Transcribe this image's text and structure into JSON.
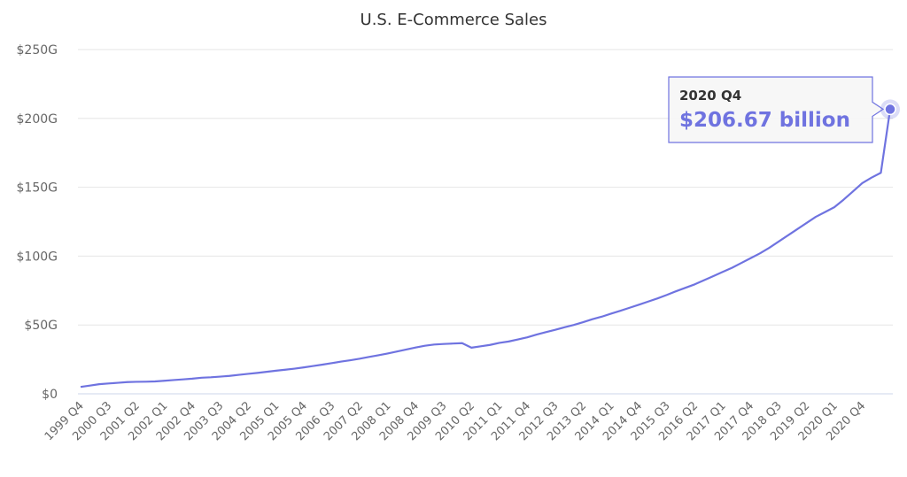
{
  "chart_data": {
    "type": "line",
    "title": "U.S. E-Commerce Sales",
    "xlabel": "",
    "ylabel": "",
    "ylim": [
      0,
      250
    ],
    "y_ticks": [
      "$0",
      "$50G",
      "$100G",
      "$150G",
      "$200G",
      "$250G"
    ],
    "x_tick_labels": [
      "1999 Q4",
      "2000 Q3",
      "2001 Q2",
      "2002 Q1",
      "2002 Q4",
      "2003 Q3",
      "2004 Q2",
      "2005 Q1",
      "2005 Q4",
      "2006 Q3",
      "2007 Q2",
      "2008 Q1",
      "2008 Q4",
      "2009 Q3",
      "2010 Q2",
      "2011 Q1",
      "2011 Q4",
      "2012 Q3",
      "2013 Q2",
      "2014 Q1",
      "2014 Q4",
      "2015 Q3",
      "2016 Q2",
      "2017 Q1",
      "2017 Q4",
      "2018 Q3",
      "2019 Q2",
      "2020 Q1",
      "2020 Q4"
    ],
    "grid": true,
    "line_color": "#6f73e0",
    "series": [
      {
        "values": [
          5.0,
          6.0,
          7.0,
          7.5,
          8.0,
          8.5,
          8.7,
          8.8,
          9.0,
          9.5,
          10.0,
          10.5,
          11.0,
          11.7,
          12.0,
          12.5,
          13.0,
          13.8,
          14.5,
          15.2,
          16.0,
          16.8,
          17.5,
          18.3,
          19.2,
          20.2,
          21.2,
          22.3,
          23.4,
          24.4,
          25.5,
          26.8,
          28.0,
          29.3,
          30.7,
          32.2,
          33.6,
          34.9,
          35.8,
          36.2,
          36.5,
          36.8,
          33.5,
          34.5,
          35.5,
          37.0,
          38.0,
          39.5,
          41.0,
          43.0,
          44.8,
          46.5,
          48.3,
          50.0,
          52.0,
          54.2,
          56.0,
          58.2,
          60.3,
          62.5,
          64.7,
          67.0,
          69.3,
          71.8,
          74.5,
          77.0,
          79.5,
          82.5,
          85.5,
          88.5,
          91.5,
          95.0,
          98.5,
          102.0,
          106.0,
          110.5,
          115.0,
          119.5,
          124.0,
          128.5,
          132.0,
          135.5,
          141.0,
          147.0,
          153.0,
          157.0,
          160.5,
          206.67
        ]
      }
    ]
  },
  "tooltip": {
    "label": "2020 Q4",
    "value": "$206.67 billion",
    "color": "#6f73e0"
  }
}
